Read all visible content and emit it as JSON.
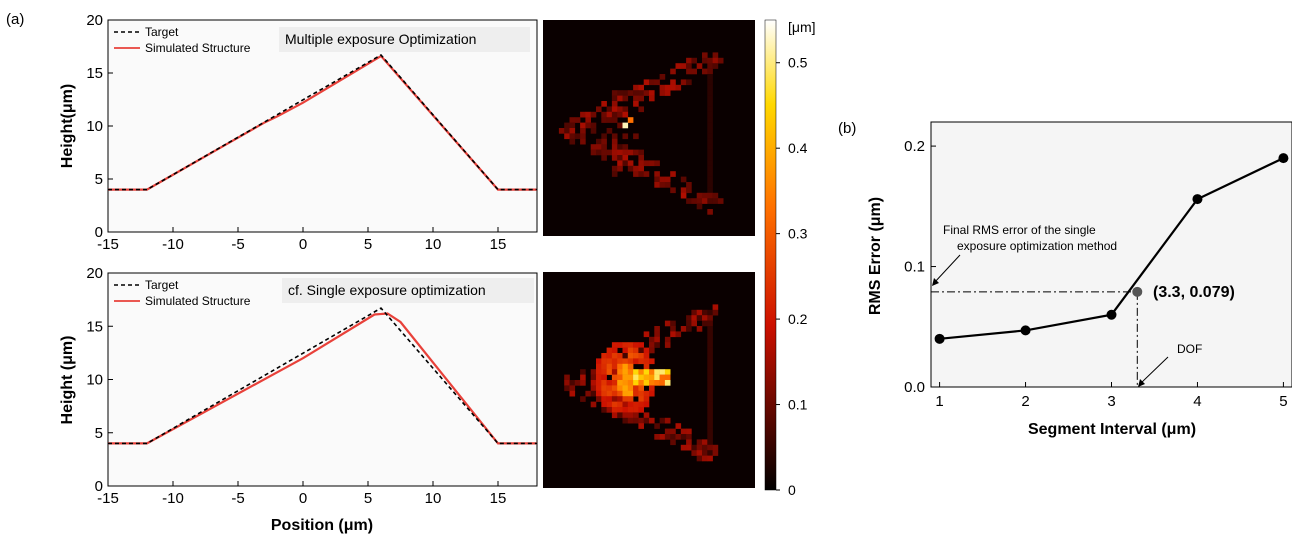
{
  "panel_labels": {
    "a": "(a)",
    "b": "(b)"
  },
  "chart_data": [
    {
      "type": "line",
      "title": "Multiple exposure Optimization",
      "xlabel": "",
      "ylabel": "Height(μm)",
      "xlim": [
        -15,
        18
      ],
      "ylim": [
        0,
        20
      ],
      "xticks": [
        -15,
        -10,
        -5,
        0,
        5,
        10,
        15
      ],
      "yticks": [
        0,
        5,
        10,
        15,
        20
      ],
      "legend": "top-left",
      "series": [
        {
          "name": "Target",
          "color": "#000000",
          "style": "dashed",
          "x": [
            -15,
            -12,
            6,
            15,
            18
          ],
          "y": [
            4,
            4,
            16.7,
            4,
            4
          ]
        },
        {
          "name": "Simulated Structure",
          "color": "#e8413a",
          "style": "solid",
          "x": [
            -15,
            -12,
            -6,
            -3,
            -2,
            0,
            6,
            15,
            18
          ],
          "y": [
            4,
            4,
            8.2,
            10.3,
            10.9,
            12.2,
            16.6,
            4,
            4
          ]
        }
      ]
    },
    {
      "type": "line",
      "title": "cf. Single exposure optimization",
      "xlabel": "Position (μm)",
      "ylabel": "Height (μm)",
      "xlim": [
        -15,
        18
      ],
      "ylim": [
        0,
        20
      ],
      "xticks": [
        -15,
        -10,
        -5,
        0,
        5,
        10,
        15
      ],
      "yticks": [
        0,
        5,
        10,
        15,
        20
      ],
      "legend": "top-left",
      "series": [
        {
          "name": "Target",
          "color": "#000000",
          "style": "dashed",
          "x": [
            -15,
            -12,
            6,
            15,
            18
          ],
          "y": [
            4,
            4,
            16.7,
            4,
            4
          ]
        },
        {
          "name": "Simulated Structure",
          "color": "#e8413a",
          "style": "solid",
          "x": [
            -15,
            -12,
            0,
            5.5,
            6.5,
            7.5,
            15,
            18
          ],
          "y": [
            4,
            4,
            12.0,
            16.1,
            16.2,
            15.4,
            4,
            4
          ]
        }
      ]
    },
    {
      "type": "heatmap",
      "colorbar": {
        "unit": "[μm]",
        "ticks": [
          "0",
          "0.1",
          "0.2",
          "0.3",
          "0.4",
          "0.5"
        ],
        "min": 0,
        "max": 0.55
      }
    },
    {
      "type": "line",
      "title": "",
      "xlabel": "Segment Interval (μm)",
      "ylabel": "RMS Error (μm)",
      "xlim": [
        0.9,
        5.1
      ],
      "ylim": [
        0,
        0.22
      ],
      "xticks": [
        1,
        2,
        3,
        4,
        5
      ],
      "yticks": [
        "0.0",
        "0.1",
        "0.2"
      ],
      "series": [
        {
          "name": "",
          "color": "#000000",
          "x": [
            1,
            2,
            3,
            4,
            5
          ],
          "y": [
            0.04,
            0.047,
            0.06,
            0.156,
            0.19
          ]
        }
      ],
      "highlight": {
        "x": 3.3,
        "y": 0.079,
        "label": "(3.3, 0.079)"
      },
      "annotations": {
        "final_line1": "Final RMS error of the single",
        "final_line2": "exposure optimization method",
        "dof": "DOF"
      }
    }
  ]
}
